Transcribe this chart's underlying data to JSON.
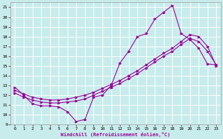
{
  "xlabel": "Windchill (Refroidissement éolien,°C)",
  "xlim": [
    -0.5,
    23.5
  ],
  "ylim": [
    9,
    21.5
  ],
  "xticks": [
    0,
    1,
    2,
    3,
    4,
    5,
    6,
    7,
    8,
    9,
    10,
    11,
    12,
    13,
    14,
    15,
    16,
    17,
    18,
    19,
    20,
    21,
    22,
    23
  ],
  "yticks": [
    9,
    10,
    11,
    12,
    13,
    14,
    15,
    16,
    17,
    18,
    19,
    20,
    21
  ],
  "bg_color": "#c8ecec",
  "line_color": "#990099",
  "grid_color": "#ffffff",
  "line1_x": [
    0,
    1,
    2,
    3,
    4,
    5,
    6,
    7,
    8,
    9,
    10,
    11,
    12,
    13,
    14,
    15,
    16,
    17,
    18,
    19,
    20,
    21,
    22,
    23
  ],
  "line1_y": [
    12.8,
    12.0,
    11.1,
    10.9,
    10.9,
    10.8,
    10.3,
    9.3,
    9.5,
    11.8,
    12.0,
    13.0,
    15.3,
    16.5,
    18.0,
    18.3,
    19.8,
    20.5,
    21.2,
    18.3,
    17.7,
    16.8,
    15.2,
    15.1
  ],
  "line2_x": [
    0,
    1,
    2,
    3,
    4,
    5,
    6,
    7,
    8,
    9,
    10,
    11,
    12,
    13,
    14,
    15,
    16,
    17,
    18,
    19,
    20,
    21,
    22,
    23
  ],
  "line2_y": [
    12.2,
    11.8,
    11.5,
    11.3,
    11.2,
    11.2,
    11.3,
    11.4,
    11.6,
    12.0,
    12.4,
    12.8,
    13.2,
    13.7,
    14.2,
    14.8,
    15.4,
    16.0,
    16.5,
    17.2,
    17.8,
    17.5,
    16.5,
    15.1
  ],
  "line3_x": [
    0,
    1,
    2,
    3,
    4,
    5,
    6,
    7,
    8,
    9,
    10,
    11,
    12,
    13,
    14,
    15,
    16,
    17,
    18,
    19,
    20,
    21,
    22,
    23
  ],
  "line3_y": [
    12.5,
    12.1,
    11.8,
    11.6,
    11.5,
    11.5,
    11.6,
    11.8,
    12.0,
    12.3,
    12.7,
    13.1,
    13.5,
    14.0,
    14.5,
    15.1,
    15.7,
    16.3,
    16.8,
    17.5,
    18.2,
    18.0,
    17.0,
    15.0
  ]
}
